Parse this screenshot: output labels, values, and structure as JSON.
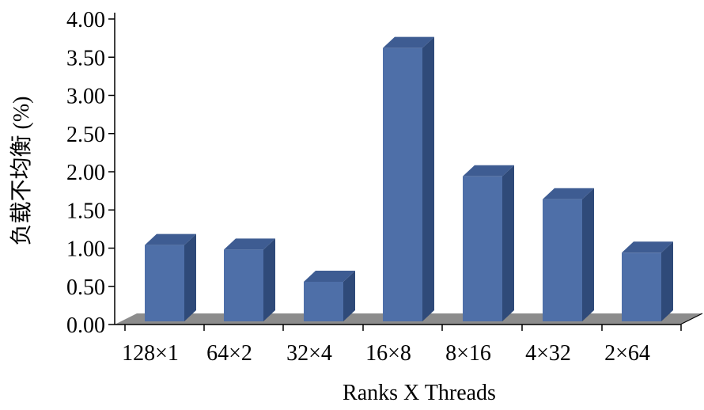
{
  "chart_data": {
    "type": "bar",
    "style": "3d",
    "title": "",
    "xlabel": "Ranks X Threads",
    "ylabel": "负载不均衡 (%)",
    "categories": [
      "128×1",
      "64×2",
      "32×4",
      "16×8",
      "8×16",
      "4×32",
      "2×64"
    ],
    "values": [
      1.04,
      0.98,
      0.56,
      3.62,
      1.94,
      1.64,
      0.94
    ],
    "ylim": [
      0,
      4.0
    ],
    "yticks": [
      "0.00",
      "0.50",
      "1.00",
      "1.50",
      "2.00",
      "2.50",
      "3.00",
      "3.50",
      "4.00"
    ],
    "grid": false,
    "legend": "none",
    "colors": {
      "bar_front": "#4E6FA8",
      "bar_side": "#2F4A79",
      "bar_top": "#3E5C92",
      "floor": "#8C8C8C"
    }
  }
}
